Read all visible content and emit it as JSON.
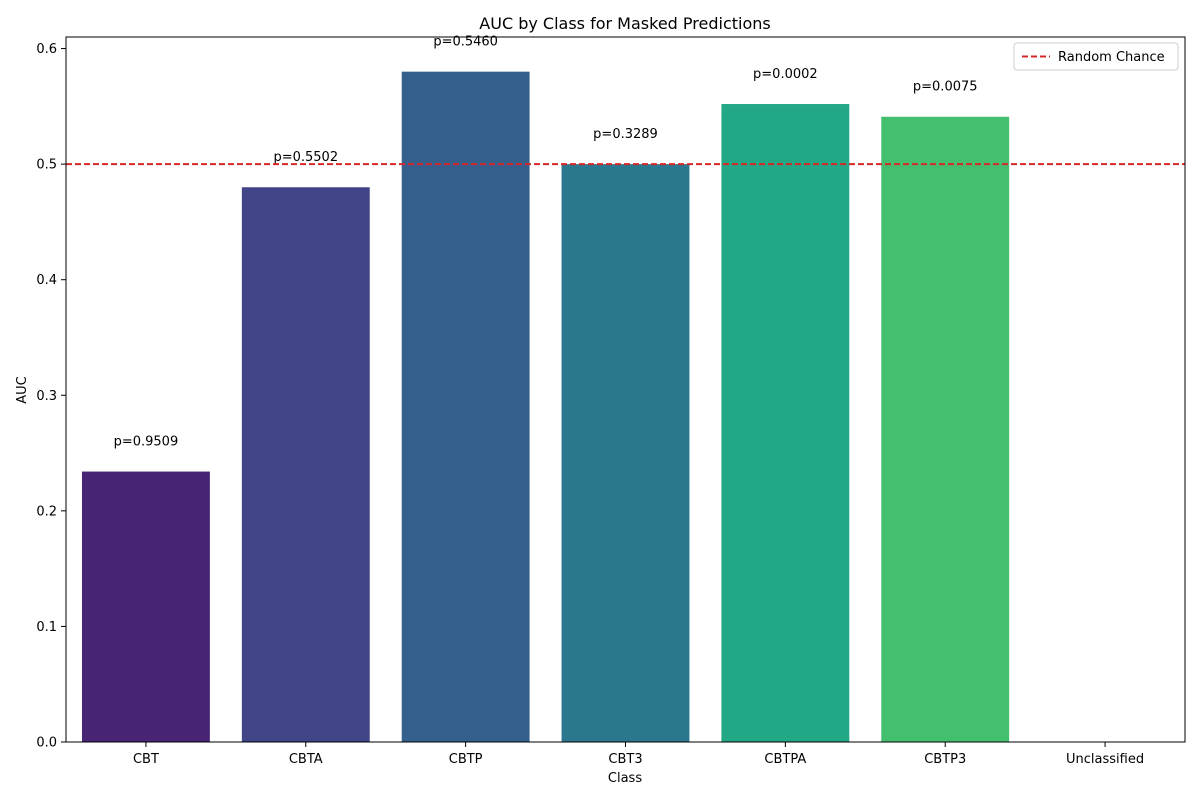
{
  "chart_data": {
    "type": "bar",
    "title": "AUC by Class for Masked Predictions",
    "xlabel": "Class",
    "ylabel": "AUC",
    "categories": [
      "CBT",
      "CBTA",
      "CBTP",
      "CBT3",
      "CBTPA",
      "CBTP3",
      "Unclassified"
    ],
    "values": [
      0.234,
      0.48,
      0.58,
      0.5,
      0.552,
      0.541,
      0
    ],
    "annotations": [
      "p=0.9509",
      "p=0.5502",
      "p=0.5460",
      "p=0.3289",
      "p=0.0002",
      "p=0.0075",
      ""
    ],
    "colors": [
      "#482475",
      "#414487",
      "#355f8d",
      "#2a788e",
      "#22a884",
      "#44bf70",
      "#7ad151"
    ],
    "ylim": [
      0,
      0.61
    ],
    "yticks": [
      0.0,
      0.1,
      0.2,
      0.3,
      0.4,
      0.5,
      0.6
    ],
    "ytick_labels": [
      "0.0",
      "0.1",
      "0.2",
      "0.3",
      "0.4",
      "0.5",
      "0.6"
    ],
    "reference_line": {
      "value": 0.5,
      "label": "Random Chance",
      "color": "#d62728",
      "style": "dashed"
    },
    "legend": {
      "placement": "top-right",
      "entries": [
        "Random Chance"
      ]
    },
    "grid": false
  }
}
